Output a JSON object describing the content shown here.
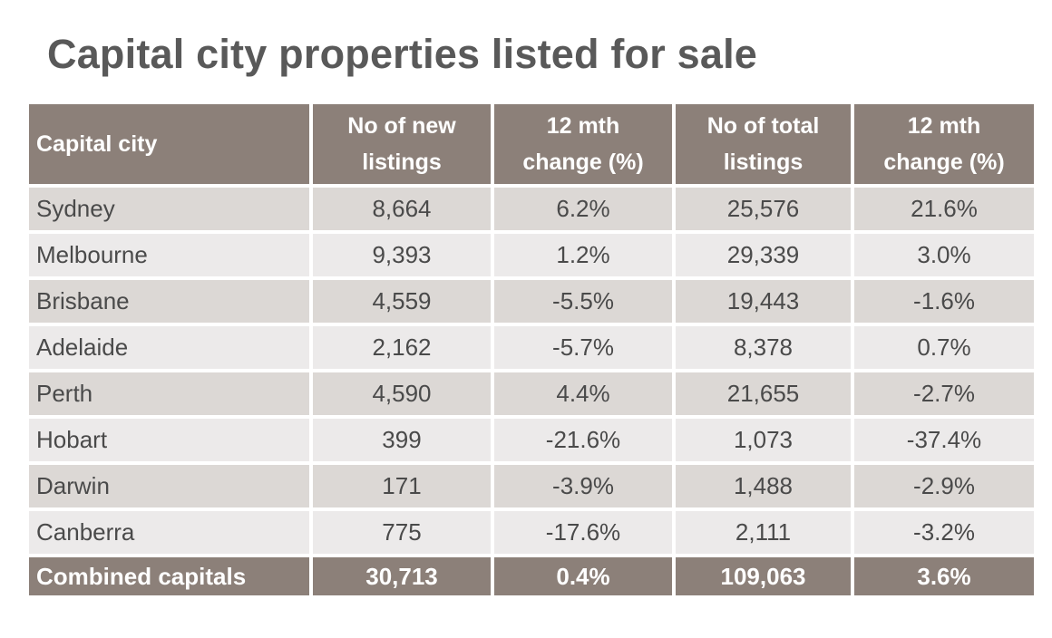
{
  "title": "Capital city properties listed for sale",
  "table": {
    "headers": [
      [
        "Capital city"
      ],
      [
        "No of new",
        "listings"
      ],
      [
        "12 mth",
        "change (%)"
      ],
      [
        "No of total",
        "listings"
      ],
      [
        "12 mth",
        "change (%)"
      ]
    ],
    "rows": [
      {
        "city": "Sydney",
        "new": "8,664",
        "new_change": "6.2%",
        "total": "25,576",
        "total_change": "21.6%"
      },
      {
        "city": "Melbourne",
        "new": "9,393",
        "new_change": "1.2%",
        "total": "29,339",
        "total_change": "3.0%"
      },
      {
        "city": "Brisbane",
        "new": "4,559",
        "new_change": "-5.5%",
        "total": "19,443",
        "total_change": "-1.6%"
      },
      {
        "city": "Adelaide",
        "new": "2,162",
        "new_change": "-5.7%",
        "total": "8,378",
        "total_change": "0.7%"
      },
      {
        "city": "Perth",
        "new": "4,590",
        "new_change": "4.4%",
        "total": "21,655",
        "total_change": "-2.7%"
      },
      {
        "city": "Hobart",
        "new": "399",
        "new_change": "-21.6%",
        "total": "1,073",
        "total_change": "-37.4%"
      },
      {
        "city": "Darwin",
        "new": "171",
        "new_change": "-3.9%",
        "total": "1,488",
        "total_change": "-2.9%"
      },
      {
        "city": "Canberra",
        "new": "775",
        "new_change": "-17.6%",
        "total": "2,111",
        "total_change": "-3.2%"
      }
    ],
    "footer": {
      "city": "Combined capitals",
      "new": "30,713",
      "new_change": "0.4%",
      "total": "109,063",
      "total_change": "3.6%"
    }
  },
  "colors": {
    "header_bg": "#8c8079",
    "row_dark": "#dcd8d5",
    "row_light": "#eceaea",
    "title_text": "#595959",
    "body_text": "#4a4a4a"
  }
}
